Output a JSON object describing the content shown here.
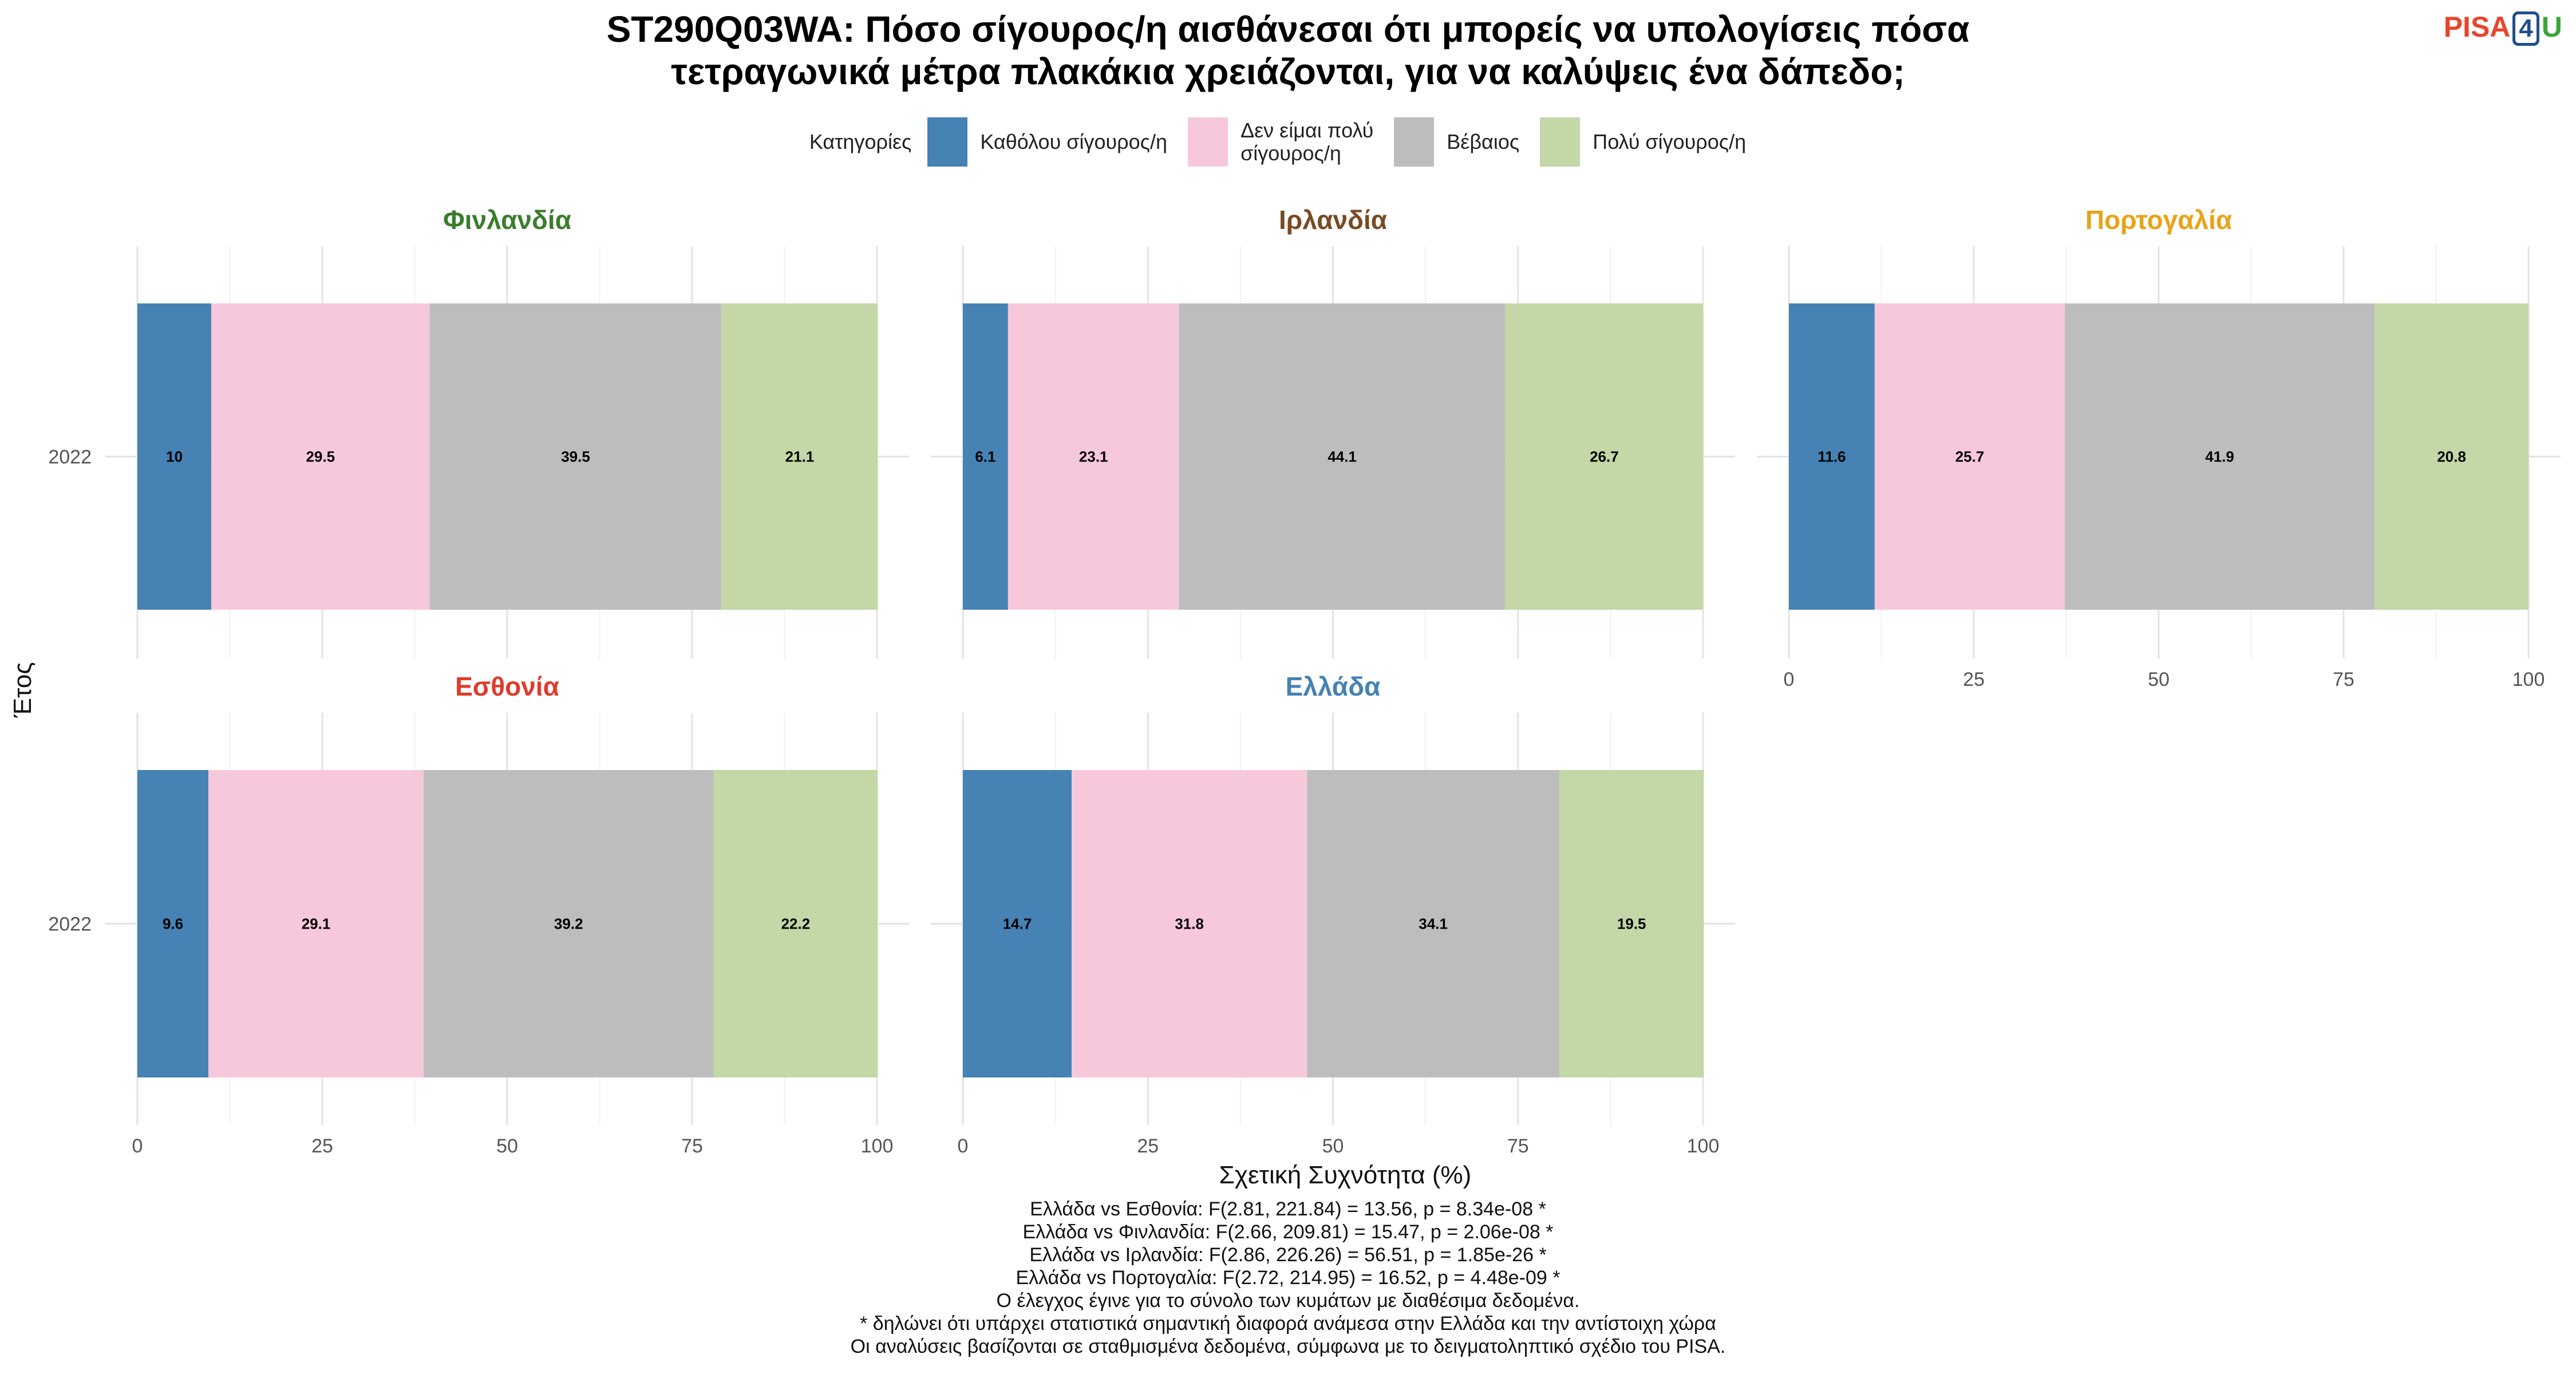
{
  "title_line1": "ST290Q03WA: Πόσο σίγουρος/η αισθάνεσαι ότι μπορείς να υπολογίσεις πόσα",
  "title_line2": "τετραγωνικά μέτρα πλακάκια χρειάζονται, για να καλύψεις ένα δάπεδο;",
  "logo": {
    "part1": "PISA",
    "part2": "4",
    "part3": "U"
  },
  "legend": {
    "title": "Κατηγορίες",
    "items": [
      {
        "label": "Καθόλου σίγουρος/η",
        "color": "#4682b4"
      },
      {
        "label": "Δεν είμαι πολύ\nσίγουρος/η",
        "color": "#f7c8dc"
      },
      {
        "label": "Βέβαιος",
        "color": "#bdbdbd"
      },
      {
        "label": "Πολύ σίγουρος/η",
        "color": "#c3d8a6"
      }
    ]
  },
  "xlabel": "Σχετική Συχνότητα (%)",
  "ylabel": "Έτος",
  "footnotes": [
    "Ελλάδα vs Εσθονία: F(2.81, 221.84) = 13.56, p = 8.34e-08 *",
    "Ελλάδα vs Φινλανδία: F(2.66, 209.81) = 15.47, p = 2.06e-08 *",
    "Ελλάδα vs Ιρλανδία: F(2.86, 226.26) = 56.51, p = 1.85e-26 *",
    "Ελλάδα vs Πορτογαλία: F(2.72, 214.95) = 16.52, p = 4.48e-09 *",
    "Ο έλεγχος έγινε για το σύνολο των κυμάτων με διαθέσιμα δεδομένα.",
    "* δηλώνει ότι υπάρχει στατιστικά σημαντική διαφορά ανάμεσα στην Ελλάδα και την αντίστοιχη χώρα",
    "Οι αναλύσεις βασίζονται σε σταθμισμένα δεδομένα, σύμφωνα με το δειγματοληπτικό σχέδιο του PISA."
  ],
  "chart_data": {
    "type": "bar",
    "orientation": "horizontal",
    "stacked": true,
    "xlim": [
      0,
      100
    ],
    "x_ticks": [
      "0",
      "25",
      "50",
      "75",
      "100"
    ],
    "categories": [
      "2022"
    ],
    "series_names": [
      "Καθόλου σίγουρος/η",
      "Δεν είμαι πολύ σίγουρος/η",
      "Βέβαιος",
      "Πολύ σίγουρος/η"
    ],
    "grid": true,
    "panels": [
      {
        "name": "Φινλανδία",
        "color": "#3a7d2c",
        "year": "2022",
        "values": [
          10,
          29.5,
          39.5,
          21.1
        ],
        "labels": [
          "10",
          "29.5",
          "39.5",
          "21.1"
        ]
      },
      {
        "name": "Ιρλανδία",
        "color": "#7a4a22",
        "year": "2022",
        "values": [
          6.1,
          23.1,
          44.1,
          26.7
        ],
        "labels": [
          "6.1",
          "23.1",
          "44.1",
          "26.7"
        ]
      },
      {
        "name": "Πορτογαλία",
        "color": "#e8a317",
        "year": "2022",
        "values": [
          11.6,
          25.7,
          41.9,
          20.8
        ],
        "labels": [
          "11.6",
          "25.7",
          "41.9",
          "20.8"
        ]
      },
      {
        "name": "Εσθονία",
        "color": "#e03a2a",
        "year": "2022",
        "values": [
          9.6,
          29.1,
          39.2,
          22.2
        ],
        "labels": [
          "9.6",
          "29.1",
          "39.2",
          "22.2"
        ]
      },
      {
        "name": "Ελλάδα",
        "color": "#4682b4",
        "year": "2022",
        "values": [
          14.7,
          31.8,
          34.1,
          19.5
        ],
        "labels": [
          "14.7",
          "31.8",
          "34.1",
          "19.5"
        ]
      }
    ]
  }
}
